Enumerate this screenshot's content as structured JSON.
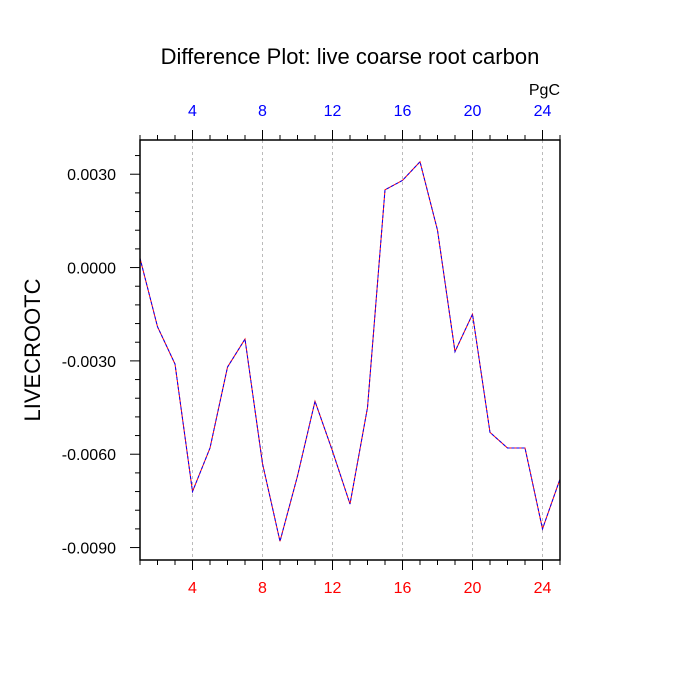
{
  "chart_data": {
    "type": "line",
    "title": "Difference Plot: live coarse root carbon",
    "units": "PgC",
    "ylabel": "LIVECROOTC",
    "xlabel": "",
    "xlim": [
      1,
      25
    ],
    "ylim": [
      -0.0094,
      0.0041
    ],
    "x_ticks": [
      4,
      8,
      12,
      16,
      20,
      24
    ],
    "x_tick_labels": [
      "4",
      "8",
      "12",
      "16",
      "20",
      "24"
    ],
    "y_ticks": [
      0.003,
      0.0,
      -0.003,
      -0.006,
      -0.009
    ],
    "y_tick_labels": [
      "0.0030",
      "0.0000",
      "-0.0030",
      "-0.0060",
      "-0.0090"
    ],
    "bottom_axis_color": "#ff0000",
    "top_axis_color": "#0000ff",
    "line_colors": [
      "#ff0000",
      "#0000ff"
    ],
    "grid": "vertical dashed",
    "x": [
      1,
      2,
      3,
      4,
      5,
      6,
      7,
      8,
      9,
      10,
      11,
      12,
      13,
      14,
      15,
      16,
      17,
      18,
      19,
      20,
      21,
      22,
      23,
      24,
      25
    ],
    "values": [
      0.0003,
      -0.0019,
      -0.0031,
      -0.0072,
      -0.0058,
      -0.0032,
      -0.0023,
      -0.0063,
      -0.0088,
      -0.0067,
      -0.0043,
      -0.0059,
      -0.0076,
      -0.0045,
      0.0025,
      0.0028,
      0.0034,
      0.0012,
      -0.0027,
      -0.0015,
      -0.0053,
      -0.0058,
      -0.0058,
      -0.0084,
      -0.0068
    ]
  }
}
